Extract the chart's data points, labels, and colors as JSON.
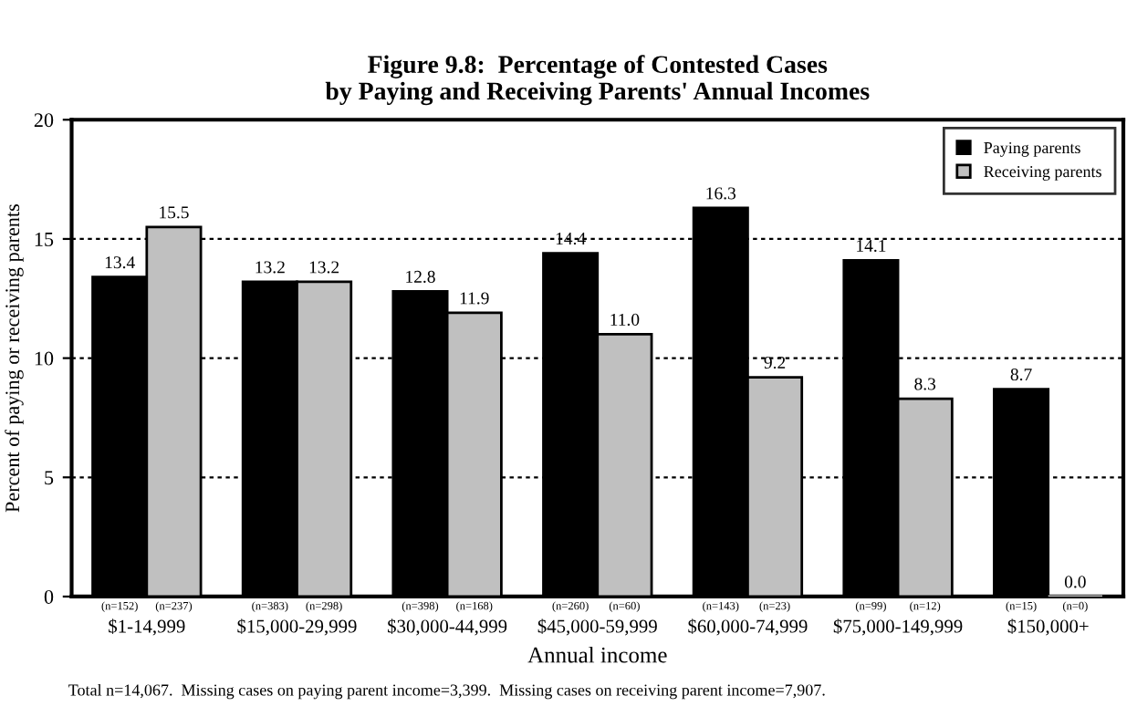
{
  "chart_data": {
    "type": "bar",
    "title": "Figure 9.8:  Percentage of Contested Cases\nby Paying and Receiving Parents' Annual Incomes",
    "xlabel": "Annual income",
    "ylabel": "Percent of paying or receiving parents",
    "categories": [
      "$1-14,999",
      "$15,000-29,999",
      "$30,000-44,999",
      "$45,000-59,999",
      "$60,000-74,999",
      "$75,000-149,999",
      "$150,000+"
    ],
    "series": [
      {
        "name": "Paying parents",
        "color": "#000000",
        "values": [
          13.4,
          13.2,
          12.8,
          14.4,
          16.3,
          14.1,
          8.7
        ],
        "value_labels": [
          "13.4",
          "13.2",
          "12.8",
          "14.4",
          "16.3",
          "14.1",
          "8.7"
        ]
      },
      {
        "name": "Receiving parents",
        "color": "#c0c0c0",
        "values": [
          15.5,
          13.2,
          11.9,
          11.0,
          9.2,
          8.3,
          0.0
        ],
        "value_labels": [
          "15.5",
          "13.2",
          "11.9",
          "11.0",
          "9.2",
          "8.3",
          "0.0"
        ]
      }
    ],
    "ylim": [
      0,
      20
    ],
    "yticks": [
      0,
      5,
      10,
      15,
      20
    ],
    "grid": "y",
    "legend": "top right",
    "annotations": [
      "(n=152)",
      "(n=237)",
      "(n=383)",
      "(n=298)",
      "(n=398)",
      "(n=168)",
      "(n=260)",
      "(n=60)",
      "(n=143)",
      "(n=23)",
      "(n=99)",
      "(n=12)",
      "(n=15)",
      "(n=0)",
      "Total n=14,067.  Missing cases on paying parent income=3,399.  Missing cases on receiving parent income=7,907."
    ]
  }
}
